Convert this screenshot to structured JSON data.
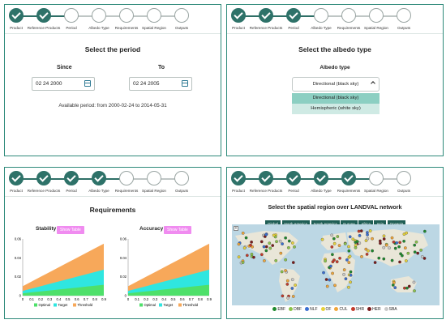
{
  "steps": [
    "Product",
    "Reference Products",
    "Period",
    "Albedo Type",
    "Requirements",
    "Spatial Region",
    "Outputs"
  ],
  "period": {
    "title": "Select the period",
    "since_label": "Since",
    "to_label": "To",
    "since_value": "02 24 2000",
    "to_value": "02 24 2005",
    "available": "Available period: from 2000-02-24 to 2014-05-31"
  },
  "albedo": {
    "title": "Select the albedo type",
    "label": "Albedo type",
    "selected": "Directional (black sky)",
    "options": [
      "Directional (black sky)",
      "Hemispheric (white sky)"
    ]
  },
  "requirements": {
    "title": "Requirements",
    "show_table": "Show Table",
    "chart_data": [
      {
        "type": "area",
        "title": "Stability",
        "x": [
          0,
          0.1,
          0.2,
          0.3,
          0.4,
          0.5,
          0.6,
          0.7,
          0.8,
          0.9
        ],
        "ylim": [
          0,
          0.06
        ],
        "yticks": [
          "0",
          "0.02",
          "0.04",
          "0.06"
        ],
        "series": [
          {
            "name": "Optimal",
            "values": [
              0.0025,
              0.0035,
              0.0045,
              0.0055,
              0.0065,
              0.0075,
              0.0085,
              0.0095,
              0.0105,
              0.0115
            ],
            "color": "#4ee06a"
          },
          {
            "name": "Target",
            "values": [
              0.005,
              0.0075,
              0.01,
              0.0125,
              0.015,
              0.0175,
              0.02,
              0.0225,
              0.025,
              0.0275
            ],
            "color": "#2fe6e0"
          },
          {
            "name": "Threshold",
            "values": [
              0.01,
              0.015,
              0.02,
              0.025,
              0.03,
              0.035,
              0.04,
              0.045,
              0.05,
              0.055
            ],
            "color": "#f7a85a"
          }
        ]
      },
      {
        "type": "area",
        "title": "Accuracy",
        "x": [
          0,
          0.1,
          0.2,
          0.3,
          0.4,
          0.5,
          0.6,
          0.7,
          0.8,
          0.9
        ],
        "ylim": [
          0,
          0.06
        ],
        "yticks": [
          "0",
          "0.02",
          "0.04",
          "0.06"
        ],
        "series": [
          {
            "name": "Optimal",
            "values": [
              0.0025,
              0.0035,
              0.0045,
              0.0055,
              0.0065,
              0.0075,
              0.0085,
              0.0095,
              0.0105,
              0.0115
            ],
            "color": "#4ee06a"
          },
          {
            "name": "Target",
            "values": [
              0.005,
              0.0075,
              0.01,
              0.0125,
              0.015,
              0.0175,
              0.02,
              0.0225,
              0.025,
              0.0275
            ],
            "color": "#2fe6e0"
          },
          {
            "name": "Threshold",
            "values": [
              0.01,
              0.015,
              0.02,
              0.025,
              0.03,
              0.035,
              0.04,
              0.045,
              0.05,
              0.055
            ],
            "color": "#f7a85a"
          }
        ]
      }
    ]
  },
  "spatial": {
    "title": "Select the spatial region over LANDVAL network",
    "regions": [
      "Global",
      "North America",
      "South America",
      "Europe",
      "Africa",
      "Asia",
      "Oceania"
    ],
    "zoom": "+",
    "legend": [
      {
        "name": "EBF",
        "color": "#1f8a2f"
      },
      {
        "name": "DBF",
        "color": "#8bc34a"
      },
      {
        "name": "NLF",
        "color": "#3b6fd1"
      },
      {
        "name": "OF",
        "color": "#e6d23b"
      },
      {
        "name": "CUL",
        "color": "#f0a63a"
      },
      {
        "name": "SHR",
        "color": "#c23a2a"
      },
      {
        "name": "HER",
        "color": "#7a1c1c"
      },
      {
        "name": "SBA",
        "color": "#c9c9c9"
      }
    ]
  }
}
